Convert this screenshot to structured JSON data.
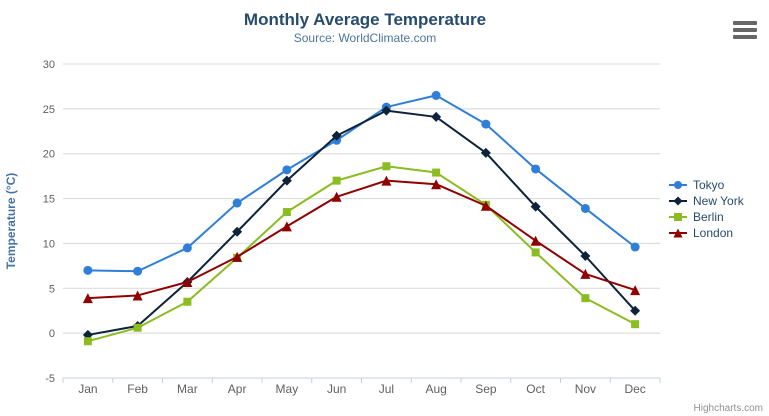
{
  "header": {
    "title": "Monthly Average Temperature",
    "subtitle": "Source: WorldClimate.com"
  },
  "menu": {
    "tooltip": "Chart context menu"
  },
  "credits": {
    "label": "Highcharts.com"
  },
  "chart_data": {
    "type": "line",
    "title": "Monthly Average Temperature",
    "subtitle": "Source: WorldClimate.com",
    "categories": [
      "Jan",
      "Feb",
      "Mar",
      "Apr",
      "May",
      "Jun",
      "Jul",
      "Aug",
      "Sep",
      "Oct",
      "Nov",
      "Dec"
    ],
    "xlabel": "",
    "ylabel": "Temperature (°C)",
    "ylim": [
      -5,
      30
    ],
    "ytick_interval": 5,
    "yticks": [
      30,
      25,
      20,
      15,
      10,
      5,
      0,
      -5
    ],
    "grid": true,
    "legend_position": "right",
    "series": [
      {
        "name": "Tokyo",
        "color": "#2f7ed8",
        "marker": "circle",
        "values": [
          7.0,
          6.9,
          9.5,
          14.5,
          18.2,
          21.5,
          25.2,
          26.5,
          23.3,
          18.3,
          13.9,
          9.6
        ]
      },
      {
        "name": "New York",
        "color": "#0d233a",
        "marker": "diamond",
        "values": [
          -0.2,
          0.8,
          5.7,
          11.3,
          17.0,
          22.0,
          24.8,
          24.1,
          20.1,
          14.1,
          8.6,
          2.5
        ]
      },
      {
        "name": "Berlin",
        "color": "#8bbc21",
        "marker": "square",
        "values": [
          -0.9,
          0.6,
          3.5,
          8.4,
          13.5,
          17.0,
          18.6,
          17.9,
          14.3,
          9.0,
          3.9,
          1.0
        ]
      },
      {
        "name": "London",
        "color": "#910000",
        "marker": "triangle",
        "values": [
          3.9,
          4.2,
          5.7,
          8.5,
          11.9,
          15.2,
          17.0,
          16.6,
          14.2,
          10.3,
          6.6,
          4.8
        ]
      }
    ]
  },
  "colors": {
    "grid": "#d8d8d8",
    "axis_line": "#c0d0e0",
    "tick": "#c0d0e0",
    "axis_label": "#606060",
    "y_axis_title": "#4572a7",
    "title": "#274b6d",
    "subtitle": "#4d759e",
    "legend_text": "#274b6d",
    "credits_text": "#909090",
    "menu_icon": "#666666"
  }
}
